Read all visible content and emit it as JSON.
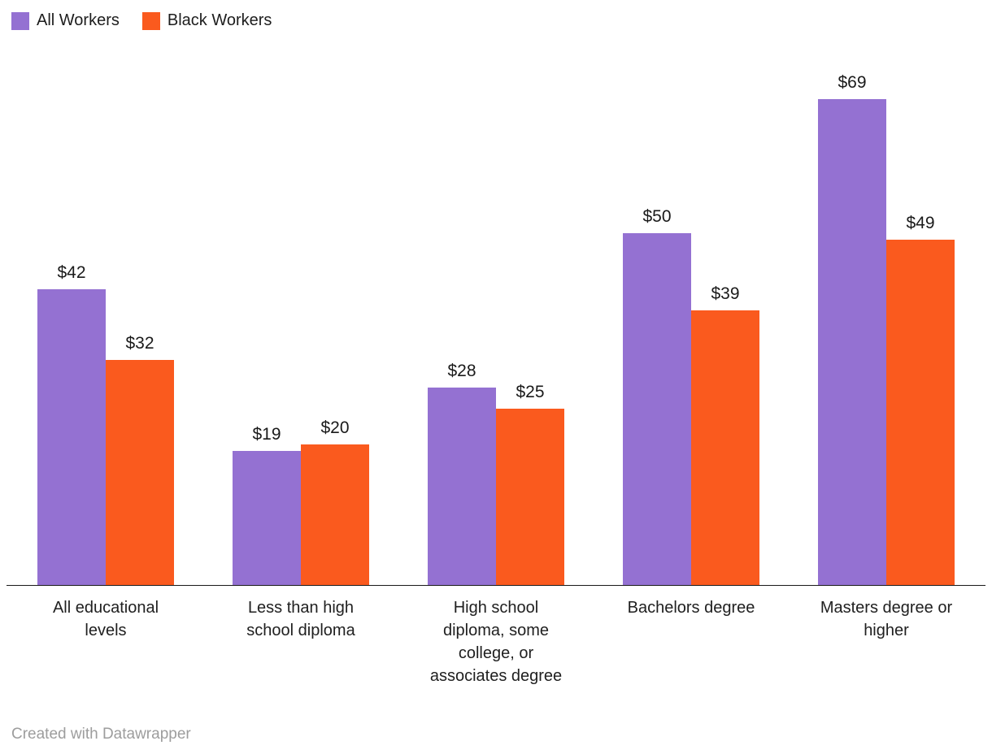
{
  "chart_data": {
    "type": "bar",
    "categories": [
      "All educational levels",
      "Less than high school diploma",
      "High school diploma, some college, or associates degree",
      "Bachelors degree",
      "Masters degree or higher"
    ],
    "series": [
      {
        "name": "All Workers",
        "color": "#9471d2",
        "values": [
          42,
          19,
          28,
          50,
          69
        ]
      },
      {
        "name": "Black Workers",
        "color": "#fa5a1e",
        "values": [
          32,
          20,
          25,
          39,
          49
        ]
      }
    ],
    "value_prefix": "$",
    "value_labels": [
      [
        "$42",
        "$19",
        "$28",
        "$50",
        "$69"
      ],
      [
        "$32",
        "$20",
        "$25",
        "$39",
        "$49"
      ]
    ],
    "title": "",
    "xlabel": "",
    "ylabel": "",
    "ylim": [
      0,
      69
    ],
    "grid": false,
    "legend_position": "top-left"
  },
  "footer": {
    "credit": "Created with Datawrapper"
  }
}
